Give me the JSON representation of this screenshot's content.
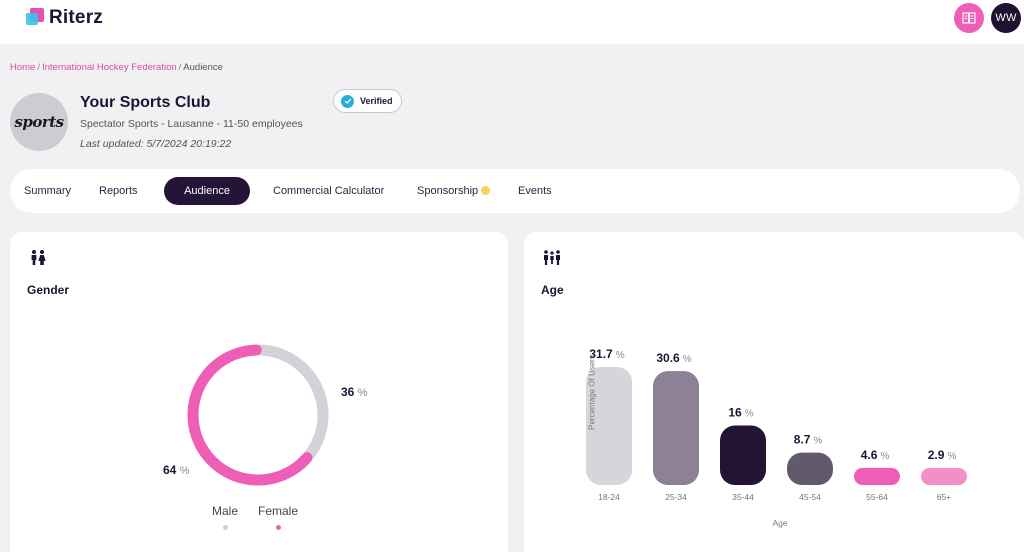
{
  "app": {
    "name": "Riterz",
    "user_initials": "WW",
    "accent": "#ee5eb6",
    "dark": "#241438"
  },
  "breadcrumb": {
    "items": [
      "Home",
      "International Hockey Federation",
      "Audience"
    ]
  },
  "club": {
    "logo_text": "sports",
    "name": "Your Sports Club",
    "meta": "Spectator Sports - Lausanne - 11-50 employees",
    "updated": "Last updated: 5/7/2024 20:19:22",
    "verified_label": "Verified"
  },
  "tabs": [
    {
      "label": "Summary",
      "active": false
    },
    {
      "label": "Reports",
      "active": false
    },
    {
      "label": "Audience",
      "active": true
    },
    {
      "label": "Commercial Calculator",
      "active": false
    },
    {
      "label": "Sponsorship",
      "active": false,
      "badge": "star-icon"
    },
    {
      "label": "Events",
      "active": false
    }
  ],
  "gender": {
    "title": "Gender",
    "icon": "gender-icon",
    "legend": [
      {
        "label": "Male",
        "color": "#cfcdd3"
      },
      {
        "label": "Female",
        "color": "#ee5eb6"
      }
    ]
  },
  "age": {
    "title": "Age",
    "icon": "group-icon"
  },
  "chart_data": [
    {
      "type": "pie",
      "title": "Gender",
      "categories": [
        "Female",
        "Male"
      ],
      "values": [
        64,
        36
      ],
      "value_labels": [
        "64",
        "36"
      ],
      "unit": "%",
      "colors": [
        "#ee5eb6",
        "#d4d2d8"
      ],
      "donut": true
    },
    {
      "type": "bar",
      "title": "Age",
      "categories": [
        "18-24",
        "25-34",
        "35-44",
        "45-54",
        "55-64",
        "65+"
      ],
      "values": [
        31.7,
        30.6,
        16,
        8.7,
        4.6,
        2.9
      ],
      "value_labels": [
        "31.7",
        "30.6",
        "16",
        "8.7",
        "4.6",
        "2.9"
      ],
      "unit": "%",
      "xlabel": "Age",
      "ylabel": "Percentage Of Users",
      "colors": [
        "#d8d4dc",
        "#8c8196",
        "#231433",
        "#625a6b",
        "#ee5eb6",
        "#f28fc9"
      ]
    }
  ]
}
